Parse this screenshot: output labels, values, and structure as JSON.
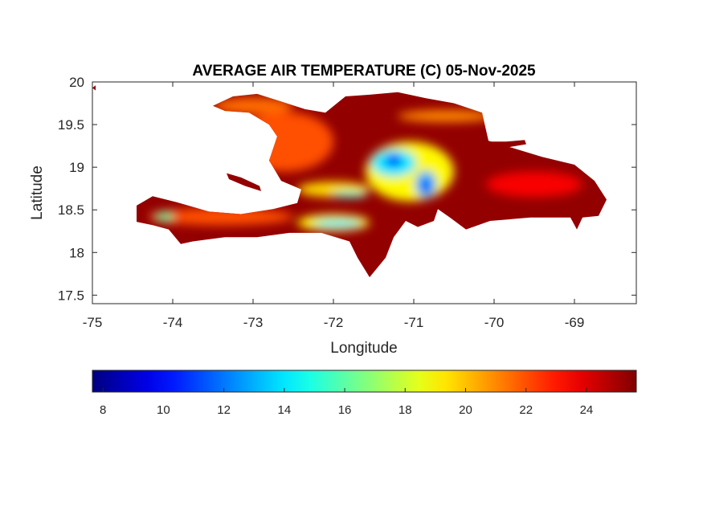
{
  "chart_data": {
    "type": "heatmap",
    "title": "AVERAGE AIR TEMPERATURE (C) 05-Nov-2025",
    "xlabel": "Longitude",
    "ylabel": "Latitude",
    "xlim": [
      -75,
      -68.23
    ],
    "ylim": [
      17.4,
      20
    ],
    "xticks": [
      -75,
      -74,
      -73,
      -72,
      -71,
      -70,
      -69
    ],
    "yticks": [
      17.5,
      18,
      18.5,
      19,
      19.5,
      20
    ],
    "grid": false,
    "colormap": "jet",
    "colorbar": {
      "location": "bottom",
      "range": [
        7.65,
        25.65
      ],
      "ticks": [
        8,
        10,
        12,
        14,
        16,
        18,
        20,
        22,
        24
      ]
    },
    "base_temperature": 25.3,
    "land_outline": [
      [
        [
          -73.5,
          19.72
        ],
        [
          -73.25,
          19.83
        ],
        [
          -72.95,
          19.86
        ],
        [
          -72.65,
          19.77
        ],
        [
          -72.35,
          19.68
        ],
        [
          -72.1,
          19.64
        ],
        [
          -71.85,
          19.83
        ],
        [
          -71.55,
          19.85
        ],
        [
          -71.2,
          19.88
        ],
        [
          -70.85,
          19.81
        ],
        [
          -70.5,
          19.75
        ],
        [
          -70.15,
          19.64
        ],
        [
          -70.07,
          19.31
        ],
        [
          -69.75,
          19.22
        ],
        [
          -69.4,
          19.12
        ],
        [
          -69.0,
          19.03
        ],
        [
          -68.75,
          18.84
        ],
        [
          -68.6,
          18.62
        ],
        [
          -68.7,
          18.43
        ],
        [
          -68.9,
          18.41
        ],
        [
          -68.97,
          18.27
        ],
        [
          -69.05,
          18.41
        ],
        [
          -69.55,
          18.41
        ],
        [
          -70.05,
          18.37
        ],
        [
          -70.35,
          18.27
        ],
        [
          -70.55,
          18.41
        ],
        [
          -70.7,
          18.51
        ],
        [
          -70.75,
          18.37
        ],
        [
          -70.95,
          18.3
        ],
        [
          -71.1,
          18.37
        ],
        [
          -71.25,
          18.18
        ],
        [
          -71.35,
          17.94
        ],
        [
          -71.55,
          17.71
        ],
        [
          -71.7,
          17.94
        ],
        [
          -71.8,
          18.13
        ],
        [
          -72.15,
          18.23
        ],
        [
          -72.55,
          18.23
        ],
        [
          -72.95,
          18.18
        ],
        [
          -73.35,
          18.18
        ],
        [
          -73.75,
          18.13
        ],
        [
          -73.9,
          18.1
        ],
        [
          -74.05,
          18.27
        ],
        [
          -74.25,
          18.32
        ],
        [
          -74.45,
          18.36
        ],
        [
          -74.45,
          18.55
        ],
        [
          -74.25,
          18.66
        ],
        [
          -73.95,
          18.59
        ],
        [
          -73.55,
          18.48
        ],
        [
          -73.15,
          18.45
        ],
        [
          -72.75,
          18.51
        ],
        [
          -72.45,
          18.58
        ],
        [
          -72.4,
          18.74
        ],
        [
          -72.65,
          18.84
        ],
        [
          -72.8,
          19.08
        ],
        [
          -72.7,
          19.36
        ],
        [
          -72.8,
          19.5
        ],
        [
          -73.05,
          19.64
        ],
        [
          -73.35,
          19.66
        ]
      ],
      [
        [
          -70.1,
          19.3
        ],
        [
          -69.85,
          19.3
        ],
        [
          -69.62,
          19.32
        ],
        [
          -69.6,
          19.27
        ],
        [
          -69.85,
          19.23
        ],
        [
          -70.1,
          19.22
        ]
      ],
      [
        [
          -73.33,
          18.93
        ],
        [
          -73.15,
          18.88
        ],
        [
          -72.92,
          18.78
        ],
        [
          -72.9,
          18.72
        ],
        [
          -73.1,
          18.78
        ],
        [
          -73.3,
          18.86
        ]
      ],
      [
        [
          -75.0,
          19.93
        ],
        [
          -74.96,
          19.96
        ],
        [
          -74.96,
          19.9
        ]
      ]
    ],
    "temperature_zones": [
      {
        "lon": -72.6,
        "lat": 19.3,
        "rlon": 0.6,
        "rlat": 0.35,
        "temp": 22
      },
      {
        "lon": -73.0,
        "lat": 19.72,
        "rlon": 0.5,
        "rlat": 0.1,
        "temp": 21.5
      },
      {
        "lon": -70.6,
        "lat": 19.6,
        "rlon": 0.6,
        "rlat": 0.07,
        "temp": 21
      },
      {
        "lon": -69.5,
        "lat": 18.8,
        "rlon": 0.6,
        "rlat": 0.15,
        "temp": 23.5
      },
      {
        "lon": -73.4,
        "lat": 18.42,
        "rlon": 0.9,
        "rlat": 0.1,
        "temp": 22
      },
      {
        "lon": -71.05,
        "lat": 18.95,
        "rlon": 0.55,
        "rlat": 0.35,
        "temp": 19
      },
      {
        "lon": -72.0,
        "lat": 18.35,
        "rlon": 0.45,
        "rlat": 0.1,
        "temp": 19
      },
      {
        "lon": -72.0,
        "lat": 18.74,
        "rlon": 0.45,
        "rlat": 0.09,
        "temp": 19.5
      },
      {
        "lon": -74.1,
        "lat": 18.42,
        "rlon": 0.12,
        "rlat": 0.05,
        "temp": 16
      },
      {
        "lon": -71.25,
        "lat": 19.05,
        "rlon": 0.28,
        "rlat": 0.16,
        "temp": 14
      },
      {
        "lon": -70.85,
        "lat": 18.8,
        "rlon": 0.13,
        "rlat": 0.16,
        "temp": 13
      },
      {
        "lon": -71.95,
        "lat": 18.34,
        "rlon": 0.3,
        "rlat": 0.045,
        "temp": 14
      },
      {
        "lon": -71.8,
        "lat": 18.68,
        "rlon": 0.22,
        "rlat": 0.035,
        "temp": 15
      },
      {
        "lon": -71.25,
        "lat": 19.08,
        "rlon": 0.1,
        "rlat": 0.07,
        "temp": 10
      },
      {
        "lon": -70.85,
        "lat": 18.78,
        "rlon": 0.06,
        "rlat": 0.07,
        "temp": 10
      }
    ]
  }
}
